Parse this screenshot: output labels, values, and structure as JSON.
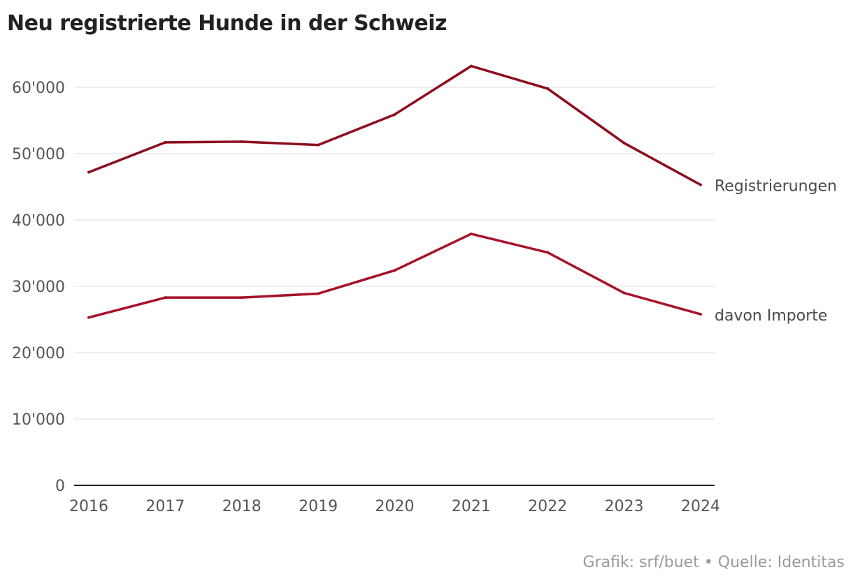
{
  "chart_data": {
    "type": "line",
    "title": "Neu registrierte Hunde in der Schweiz",
    "x": [
      "2016",
      "2017",
      "2018",
      "2019",
      "2020",
      "2021",
      "2022",
      "2023",
      "2024"
    ],
    "y_ticks": [
      "0",
      "10'000",
      "20'000",
      "30'000",
      "40'000",
      "50'000",
      "60'000"
    ],
    "ylim": [
      0,
      60000
    ],
    "grid": true,
    "legend": "direct-labels-right",
    "series": [
      {
        "name": "Registrierungen",
        "color": "#8c0d1e",
        "values": [
          47200,
          51700,
          51800,
          51300,
          55900,
          63200,
          59800,
          51600,
          45300
        ]
      },
      {
        "name": "davon Importe",
        "color": "#a8112a",
        "values": [
          25300,
          28300,
          28300,
          28900,
          32400,
          37900,
          35100,
          29000,
          25800
        ]
      }
    ]
  },
  "footer": {
    "source": "Grafik: srf/buet • Quelle: Identitas"
  }
}
